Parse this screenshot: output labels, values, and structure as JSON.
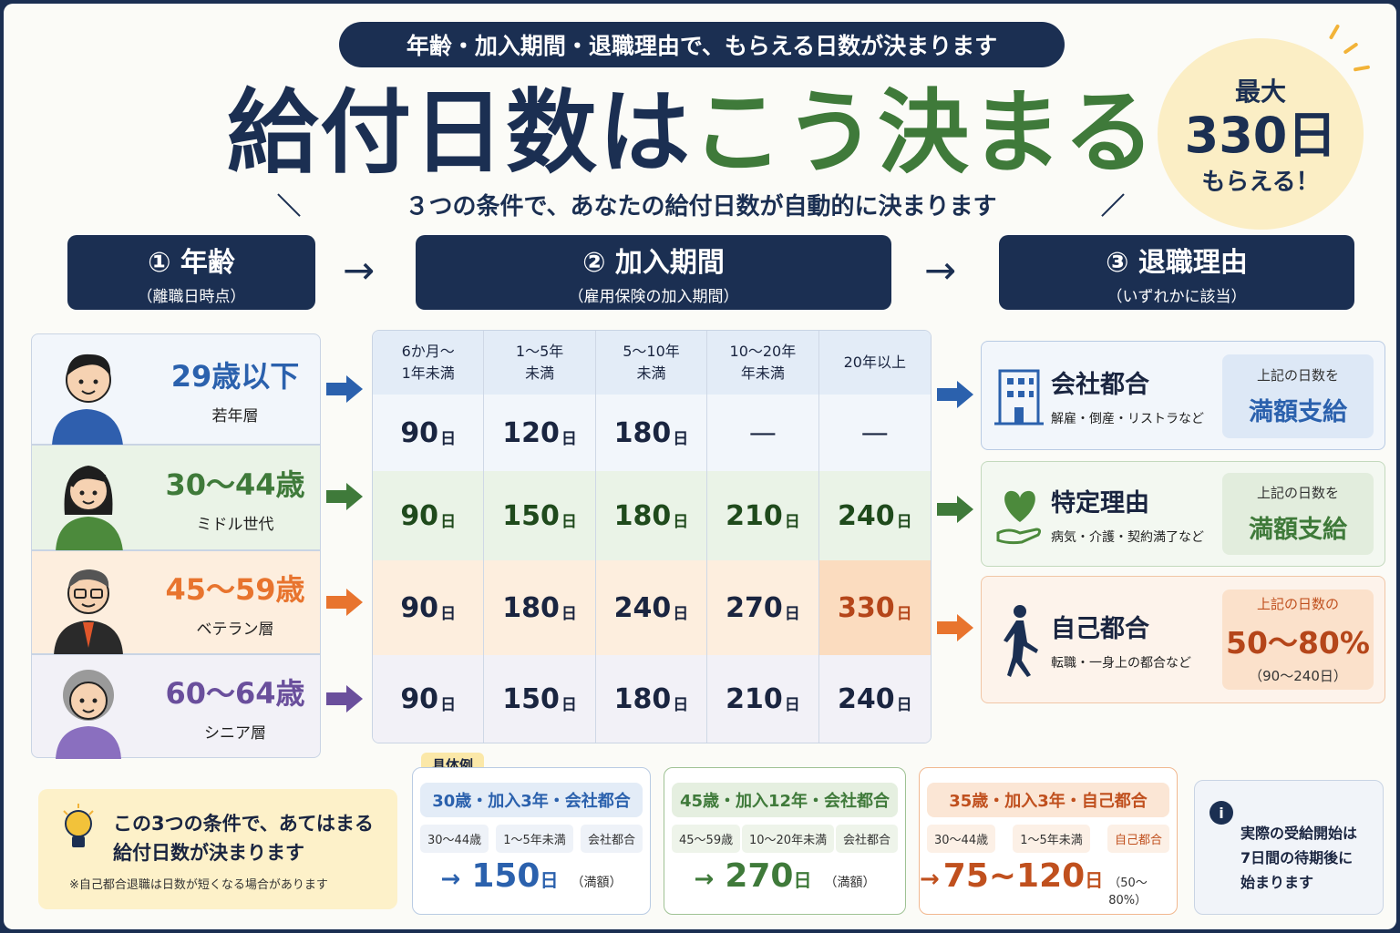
{
  "header": {
    "pill": "年齢・加入期間・退職理由で、もらえる日数が決まります",
    "title_a": "給付日数は",
    "title_b": "こう決まる",
    "subtitle": "３つの条件で、あなたの給付日数が自動的に決まります",
    "sub_left": "＼",
    "sub_right": "／"
  },
  "badge": {
    "line1": "最大",
    "line2": "330日",
    "line3": "もらえる！"
  },
  "steps": [
    {
      "title": "① 年齢",
      "sub": "（離職日時点）"
    },
    {
      "title": "② 加入期間",
      "sub": "（雇用保険の加入期間）"
    },
    {
      "title": "③ 退職理由",
      "sub": "（いずれかに該当）"
    }
  ],
  "step_arrow": "→",
  "ages": [
    {
      "label": "29歳以下",
      "sub": "若年層",
      "color": "#2b61ad"
    },
    {
      "label": "30～44歳",
      "sub": "ミドル世代",
      "color": "#3f7a3a"
    },
    {
      "label": "45～59歳",
      "sub": "ベテラン層",
      "color": "#e8742e"
    },
    {
      "label": "60～64歳",
      "sub": "シニア層",
      "color": "#6a4f9c"
    }
  ],
  "table": {
    "headers": [
      "6か月～\n1年未満",
      "1～5年\n未満",
      "5～10年\n未満",
      "10～20年\n年未満",
      "20年以上"
    ],
    "unit": "日",
    "rows": [
      [
        "90",
        "120",
        "180",
        "—",
        "—"
      ],
      [
        "90",
        "150",
        "180",
        "210",
        "240"
      ],
      [
        "90",
        "180",
        "240",
        "270",
        "330"
      ],
      [
        "90",
        "150",
        "180",
        "210",
        "240"
      ]
    ]
  },
  "reasons": [
    {
      "name": "会社都合",
      "ex": "解雇・倒産・リストラなど",
      "box1": "上記の日数を",
      "box2": "満額支給",
      "box3": ""
    },
    {
      "name": "特定理由",
      "ex": "病気・介護・契約満了など",
      "box1": "上記の日数を",
      "box2": "満額支給",
      "box3": ""
    },
    {
      "name": "自己都合",
      "ex": "転職・一身上の都合など",
      "box1": "上記の日数の",
      "box2": "50～80%",
      "box3": "（90～240日）"
    }
  ],
  "note": {
    "line1": "この3つの条件で、あてはまる",
    "line2": "給付日数が決まります",
    "small": "※自己都合退職は日数が短くなる場合があります"
  },
  "examples_label": "具体例",
  "examples": [
    {
      "title": "30歳・加入3年・会社都合",
      "tags": [
        "30～44歳",
        "1～5年未満",
        "会社都合"
      ],
      "arrow": "→",
      "value": "150",
      "unit": "日",
      "note": "（満額）"
    },
    {
      "title": "45歳・加入12年・会社都合",
      "tags": [
        "45～59歳",
        "10～20年未満",
        "会社都合"
      ],
      "arrow": "→",
      "value": "270",
      "unit": "日",
      "note": "（満額）"
    },
    {
      "title": "35歳・加入3年・自己都合",
      "tags": [
        "30～44歳",
        "1～5年未満",
        "自己都合"
      ],
      "arrow": "→",
      "value": "75~120",
      "unit": "日",
      "note": "（50～80%）"
    }
  ],
  "info": {
    "icon": "i",
    "line1": "実際の受給開始は",
    "line2": "7日間の待期後に",
    "line3": "始まります"
  }
}
